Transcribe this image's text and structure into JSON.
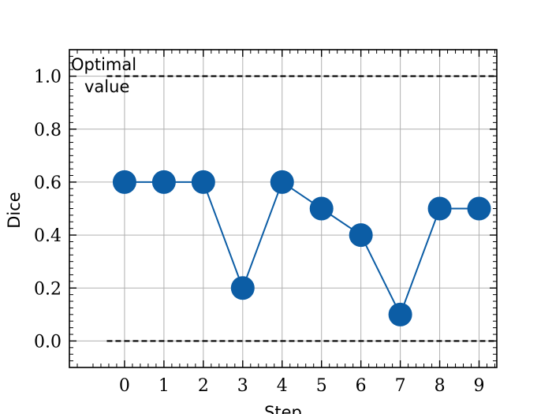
{
  "chart_data": {
    "type": "line",
    "title": "",
    "xlabel": "Step",
    "ylabel": "Dice",
    "x": [
      0,
      1,
      2,
      3,
      4,
      5,
      6,
      7,
      8,
      9
    ],
    "series": [
      {
        "values": [
          0.6,
          0.6,
          0.6,
          0.2,
          0.6,
          0.5,
          0.4,
          0.1,
          0.5,
          0.5
        ],
        "color": "#0c5da5",
        "marker": "circle"
      }
    ],
    "reference_lines": [
      {
        "y": 1.0,
        "style": "dashed",
        "color": "#000000"
      },
      {
        "y": 0.0,
        "style": "dashed",
        "color": "#000000"
      }
    ],
    "annotation": {
      "lines": [
        "Optimal",
        "value"
      ]
    },
    "xticks": [
      "0",
      "1",
      "2",
      "3",
      "4",
      "5",
      "6",
      "7",
      "8",
      "9"
    ],
    "yticks": [
      "0.0",
      "0.2",
      "0.4",
      "0.6",
      "0.8",
      "1.0"
    ],
    "xlim": [
      -1.4,
      9.45
    ],
    "ylim": [
      -0.1,
      1.1
    ],
    "grid": true
  }
}
